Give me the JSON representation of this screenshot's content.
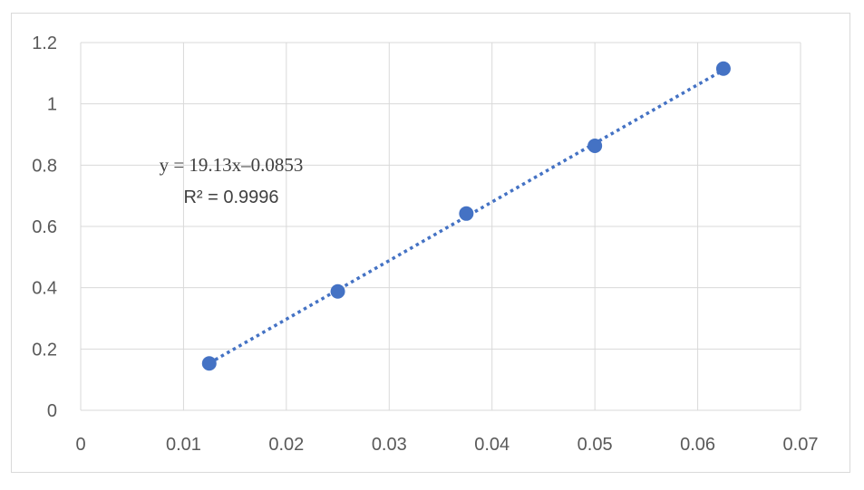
{
  "chart_data": {
    "type": "scatter",
    "x": [
      0.0125,
      0.025,
      0.0375,
      0.05,
      0.0625
    ],
    "y": [
      0.153,
      0.388,
      0.642,
      0.863,
      1.115
    ],
    "xlim": [
      0,
      0.07
    ],
    "ylim": [
      0,
      1.2
    ],
    "x_ticks": [
      "0",
      "0.01",
      "0.02",
      "0.03",
      "0.04",
      "0.05",
      "0.06",
      "0.07"
    ],
    "y_ticks": [
      "0",
      "0.2",
      "0.4",
      "0.6",
      "0.8",
      "1",
      "1.2"
    ],
    "grid": true,
    "trendline": {
      "type": "linear",
      "style": "dotted",
      "slope": 19.13,
      "intercept": -0.0853,
      "equation": "y = 19.13x–0.0853",
      "r_squared": "R² = 0.9996"
    },
    "colors": {
      "series": "#4472c4",
      "grid": "#d9d9d9",
      "text": "#595959"
    }
  }
}
